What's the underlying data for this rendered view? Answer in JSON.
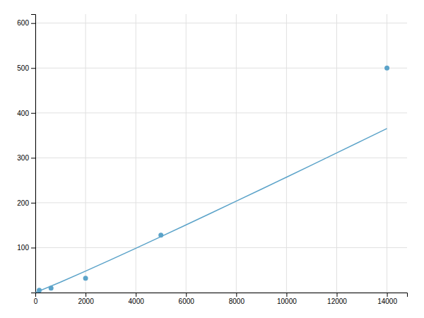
{
  "chart_data": {
    "type": "scatter",
    "series": [
      {
        "type": "line",
        "color": "#5ba3c9",
        "x": [
          1,
          1000,
          2000,
          3000,
          4000,
          5000,
          6000,
          7000,
          8000,
          9000,
          10000,
          11000,
          12000,
          13000,
          14000
        ],
        "values": [
          0.017,
          23.16,
          47.8,
          73.02,
          98.63,
          124.53,
          150.67,
          177.0,
          203.51,
          230.17,
          256.96,
          283.87,
          310.89,
          338.02,
          365.24
        ]
      },
      {
        "type": "scatter",
        "color": "#5ba3c9",
        "x": [
          156,
          625,
          2000,
          5000,
          14000
        ],
        "values": [
          5,
          10,
          32,
          128,
          500
        ]
      }
    ],
    "xlim": [
      0,
      14800
    ],
    "ylim": [
      0,
      620
    ],
    "xticks": [
      0,
      2000,
      4000,
      6000,
      8000,
      10000,
      12000,
      14000
    ],
    "yticks": [
      {
        "value": 0,
        "label": null
      },
      100,
      200,
      300,
      400,
      500,
      600
    ],
    "grid": true
  }
}
